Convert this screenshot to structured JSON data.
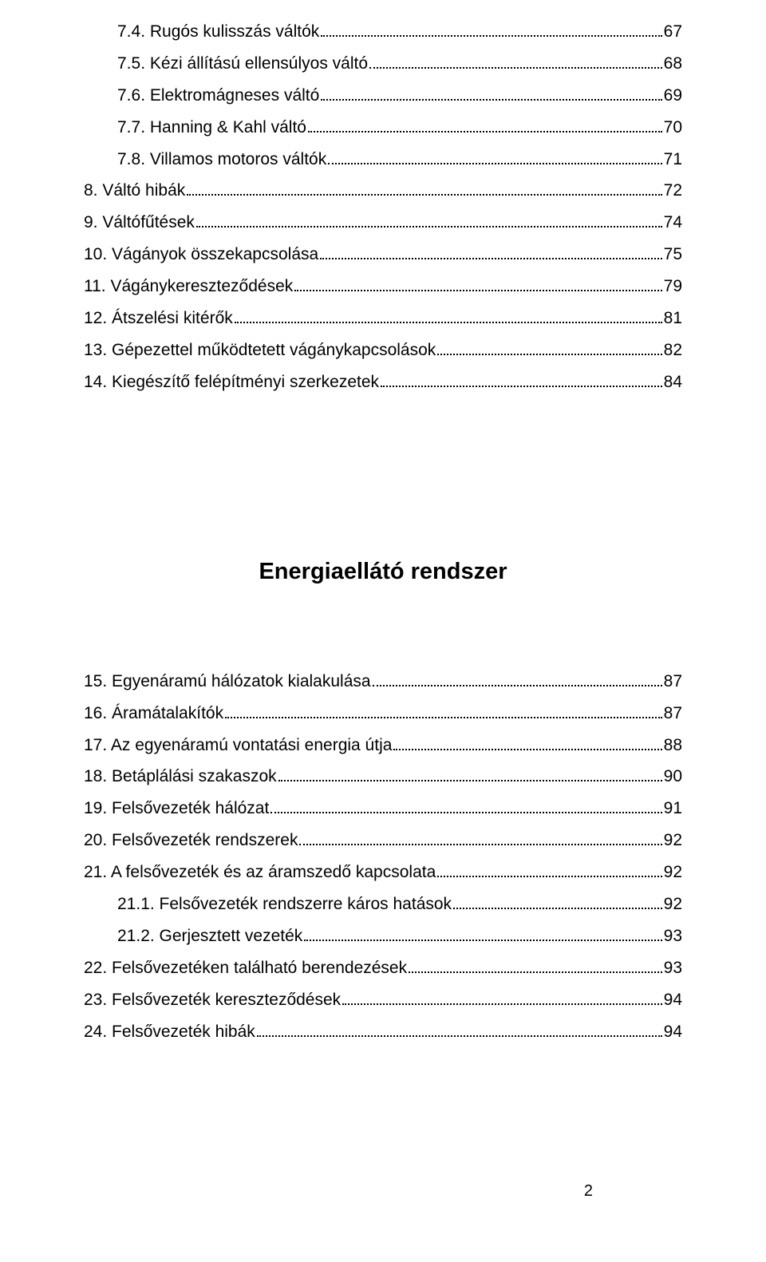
{
  "toc_top": [
    {
      "indent": 1,
      "label": "7.4. Rugós kulisszás váltók",
      "page": "67"
    },
    {
      "indent": 1,
      "label": "7.5. Kézi állítású ellensúlyos váltó",
      "page": "68"
    },
    {
      "indent": 1,
      "label": "7.6. Elektromágneses váltó",
      "page": "69"
    },
    {
      "indent": 1,
      "label": "7.7. Hanning & Kahl váltó",
      "page": "70"
    },
    {
      "indent": 1,
      "label": "7.8. Villamos motoros váltók",
      "page": "71"
    },
    {
      "indent": 0,
      "label": "8. Váltó hibák",
      "page": "72"
    },
    {
      "indent": 0,
      "label": "9. Váltófűtések",
      "page": "74"
    },
    {
      "indent": 0,
      "label": "10. Vágányok összekapcsolása",
      "page": "75"
    },
    {
      "indent": 0,
      "label": "11. Vágánykereszteződések",
      "page": "79"
    },
    {
      "indent": 0,
      "label": "12. Átszelési kitérők",
      "page": "81"
    },
    {
      "indent": 0,
      "label": "13. Gépezettel működtetett vágánykapcsolások",
      "page": "82"
    },
    {
      "indent": 0,
      "label": "14. Kiegészítő felépítményi szerkezetek",
      "page": "84"
    }
  ],
  "section_title": "Energiaellátó rendszer",
  "toc_bottom": [
    {
      "indent": 0,
      "label": "15. Egyenáramú hálózatok kialakulása",
      "page": "87"
    },
    {
      "indent": 0,
      "label": "16. Áramátalakítók",
      "page": "87"
    },
    {
      "indent": 0,
      "label": "17. Az egyenáramú vontatási energia útja",
      "page": "88"
    },
    {
      "indent": 0,
      "label": "18. Betáplálási szakaszok",
      "page": "90"
    },
    {
      "indent": 0,
      "label": "19. Felsővezeték hálózat",
      "page": "91"
    },
    {
      "indent": 0,
      "label": "20. Felsővezeték rendszerek",
      "page": "92"
    },
    {
      "indent": 0,
      "label": "21. A felsővezeték és az áramszedő kapcsolata",
      "page": "92"
    },
    {
      "indent": 1,
      "label": "21.1. Felsővezeték rendszerre káros hatások",
      "page": "92"
    },
    {
      "indent": 1,
      "label": "21.2. Gerjesztett vezeték",
      "page": "93"
    },
    {
      "indent": 0,
      "label": "22. Felsővezetéken található berendezések",
      "page": "93"
    },
    {
      "indent": 0,
      "label": "23. Felsővezeték kereszteződések",
      "page": "94"
    },
    {
      "indent": 0,
      "label": "24. Felsővezeték hibák",
      "page": "94"
    }
  ],
  "page_number": "2"
}
